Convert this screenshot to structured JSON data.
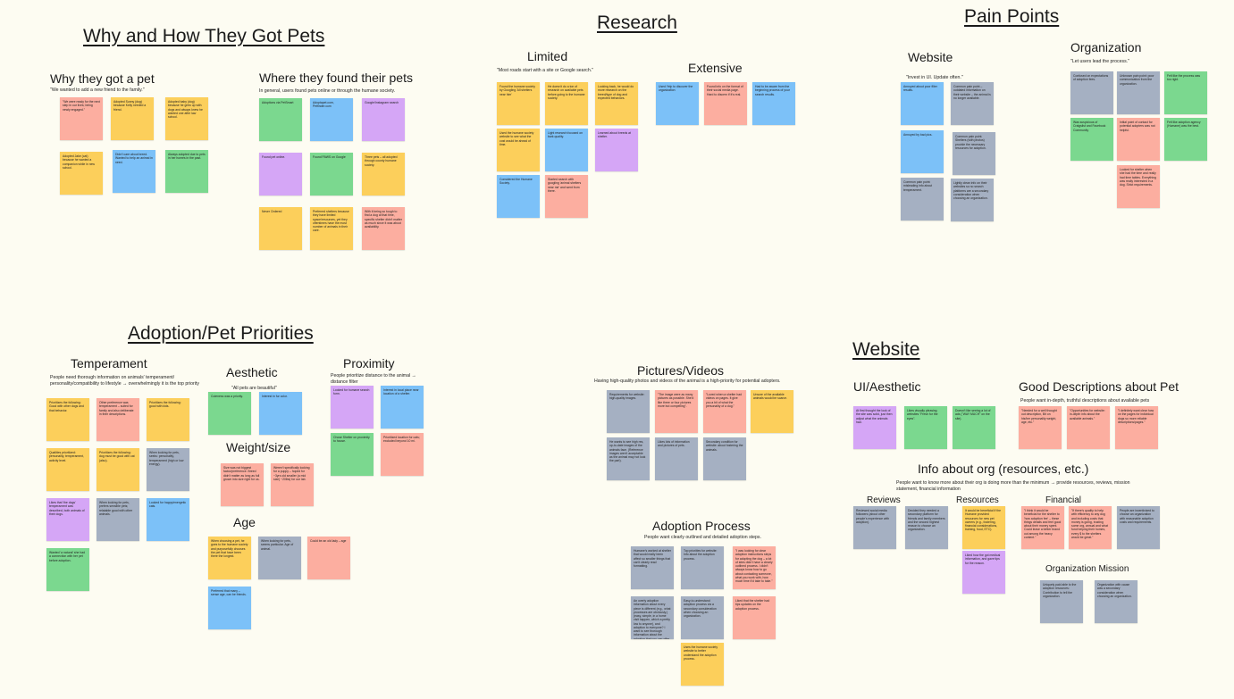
{
  "sections": {
    "why_how": "Why and How They Got Pets",
    "research": "Research",
    "pain_points": "Pain Points",
    "adoption_priorities": "Adoption/Pet Priorities",
    "website": "Website"
  },
  "subs": {
    "why_got": {
      "title": "Why they got a pet",
      "desc": "\"We wanted to add a new friend to the family.\""
    },
    "where_found": {
      "title": "Where they found their pets",
      "desc": "In general, users found pets online or through the humane society."
    },
    "limited": {
      "title": "Limited",
      "desc": "\"Most roads start with a site or Google search.\""
    },
    "extensive": {
      "title": "Extensive",
      "desc": ""
    },
    "pp_website": {
      "title": "Website",
      "desc": "\"Invest in UI. Update often.\""
    },
    "pp_org": {
      "title": "Organization",
      "desc": "\"Let users lead the process.\""
    },
    "temperament": {
      "title": "Temperament",
      "desc": "People need thorough information on animals' temperament/ personality/compatibility to lifestyle → overwhelmingly it is the top priority"
    },
    "aesthetic": {
      "title": "Aesthetic",
      "desc": "\"All pets are beautiful\""
    },
    "proximity": {
      "title": "Proximity",
      "desc": "People prioritize distance to the animal → distance filter"
    },
    "weight": {
      "title": "Weight/size",
      "desc": ""
    },
    "age": {
      "title": "Age",
      "desc": ""
    },
    "pictures": {
      "title": "Pictures/Videos",
      "desc": "Having high-quality photos and videos of the animal is a high-priority for potential adopters."
    },
    "process": {
      "title": "Adoption Process",
      "desc": "People want clearly outlined and detailed adoption steps."
    },
    "ui": {
      "title": "UI/Aesthetic",
      "desc": ""
    },
    "good_desc": {
      "title": "Good Descriptions about Pet",
      "desc": "People want in-depth, truthful descriptions about available pets"
    },
    "info_org": {
      "title": "Info about org (resources, etc.)",
      "desc": "People want to know more about their org is doing more than the minimum → provide resources, reviews, mission statement, financial information"
    },
    "reviews": {
      "title": "Reviews",
      "desc": ""
    },
    "resources": {
      "title": "Resources",
      "desc": ""
    },
    "financial": {
      "title": "Financial",
      "desc": ""
    },
    "mission": {
      "title": "Organization Mission",
      "desc": ""
    }
  },
  "notes": [
    {
      "c": "p",
      "text": "\"We were ready for the next step in our lives; being newly engaged.\""
    },
    {
      "c": "y",
      "text": "Adopted Sunny (dog) because Kelly needed a friend."
    },
    {
      "c": "y",
      "text": "Adopted baby (dog) because he grew up with dogs and always knew he wanted one after law school."
    },
    {
      "c": "y",
      "text": "Adopted Jake (cat) because he wanted a companion while in new school."
    },
    {
      "c": "b",
      "text": "Didn't care about breed. Wanted to help an animal in need."
    },
    {
      "c": "g",
      "text": "Always adopted due to pets in her homes in the past."
    },
    {
      "c": "g",
      "text": "Adoptions via PetSmart"
    },
    {
      "c": "b",
      "text": "Adoptapet.com, Petfinder.com"
    },
    {
      "c": "v",
      "text": "Google/Instagram search"
    },
    {
      "c": "v",
      "text": "Found pet online."
    },
    {
      "c": "g",
      "text": "Found PAWS on Google"
    },
    {
      "c": "y",
      "text": "Three pets – all adopted through county humane society."
    },
    {
      "c": "y",
      "text": "Never Ordered"
    },
    {
      "c": "y",
      "text": "Preferred shelters because they have limited space/resources, yet they oftentimes have the most number of animals in their care."
    },
    {
      "c": "p",
      "text": "With it being so tough to find a dog at that time, specific shelter didn't matter as much since it was about availability."
    },
    {
      "c": "y",
      "text": "Found the humane society by Googling 'All shelters near him'"
    },
    {
      "c": "y",
      "text": "He doesn't do a ton of research on available pets before going to the humane society."
    },
    {
      "c": "y",
      "text": "Looking back, he would do more research on the breed/type of dog and expected behaviors."
    },
    {
      "c": "y",
      "text": "Used the humane society website to see what the cost would be ahead of time."
    },
    {
      "c": "b",
      "text": "Light research focused on bark quality."
    },
    {
      "c": "v",
      "text": "Learned about breeds at shelter."
    },
    {
      "c": "b",
      "text": "Considered the Humane Society."
    },
    {
      "c": "p",
      "text": "Started search with googling 'animal shelters near me' and went from there."
    },
    {
      "c": "b",
      "text": "Used Yelp to discover the organization"
    },
    {
      "c": "p",
      "text": "Found info on the format of their social media page. Hard to discern if it's real."
    },
    {
      "c": "b",
      "text": "Had to be aware from the beginning process of your search results."
    },
    {
      "c": "b",
      "text": "Annoyed about poor filter results."
    },
    {
      "c": "s",
      "text": "Common pain point – outdated information on their website – the animal is no longer available."
    },
    {
      "c": "b",
      "text": "Annoyed by bad pics."
    },
    {
      "c": "s",
      "text": "Common pain point. Shelters (with photos) provide the necessary resources for adoption."
    },
    {
      "c": "s",
      "text": "Common pain point: misleading info about temperament."
    },
    {
      "c": "s",
      "text": "Lightly clean info on their websites so no search platforms are a secondary consideration when choosing an organization."
    },
    {
      "c": "s",
      "text": "Confused on expectations of adoption fees."
    },
    {
      "c": "s",
      "text": "Unknown pain point: poor communication from the organization."
    },
    {
      "c": "g",
      "text": "Felt like the process was too rigid."
    },
    {
      "c": "g",
      "text": "Was suspicious of Craigslist and Facebook Community"
    },
    {
      "c": "p",
      "text": "Initial point of contact for potential adopters was not helpful."
    },
    {
      "c": "g",
      "text": "Felt like adoption agency (Humane) was the best."
    },
    {
      "c": "p",
      "text": "Looked for shelter when she had the time and really had time tables. Everything was really interested in a dog. Strict requirements."
    },
    {
      "c": "y",
      "text": "Prioritizes the following: Good with other dogs and that behavior."
    },
    {
      "c": "p",
      "text": "Other preference was temperament – suited for family and also deliberate in their descriptions."
    },
    {
      "c": "y",
      "text": "Prioritizes the following: good with kids."
    },
    {
      "c": "y",
      "text": "Qualities prioritized: personality, temperament, activity level."
    },
    {
      "c": "y",
      "text": "Prioritizes the following: dog must be good with cat (also)."
    },
    {
      "c": "s",
      "text": "When looking for pets, seeks: personality, temperament (high or low energy)."
    },
    {
      "c": "v",
      "text": "Likes that 'the dogs' temperament was described, both animals of their dogs."
    },
    {
      "c": "s",
      "text": "When looking for pets, prefers sensible pets; relatable good with other animals."
    },
    {
      "c": "b",
      "text": "Looked for happy/energetic cats."
    },
    {
      "c": "g",
      "text": "Wanted 'a natural' she had a connection with her pet before adoption."
    },
    {
      "c": "g",
      "text": "Cuteness was a priority."
    },
    {
      "c": "b",
      "text": "Interest in fur color."
    },
    {
      "c": "v",
      "text": "Looked for humane search form."
    },
    {
      "c": "b",
      "text": "Interest in local place near location of a shelter."
    },
    {
      "c": "g",
      "text": "Chose Shelter on proximity to house."
    },
    {
      "c": "p",
      "text": "Prioritized location for cats; excluded beyond 10 mi."
    },
    {
      "c": "p",
      "text": "Size was not biggest factor/preference. Breed didn't matter as long as full grown into size right for us."
    },
    {
      "c": "p",
      "text": "Weren't specifically looking for a puppy – hoped for ~3yrs old smaller (a mid size) ~20lbs) for our lab."
    },
    {
      "c": "y",
      "text": "When choosing a pet, he goes to the humane society and purposefully chooses the pet that have been there the longest."
    },
    {
      "c": "s",
      "text": "When looking for pets, seems particular. Age of animal."
    },
    {
      "c": "p",
      "text": "Could be an old lady – age"
    },
    {
      "c": "b",
      "text": "Preferred that many – sense age, can be friends."
    },
    {
      "c": "s",
      "text": "Requirements for website: high-quality images."
    },
    {
      "c": "p",
      "text": "\"The image were as many pictures as possible. She'd like three or four pictures more but compelling\"."
    },
    {
      "c": "p",
      "text": "\"Loved when a shelter had videos on pages. It give you a bit of what the personality of a dog.\""
    },
    {
      "c": "y",
      "text": "Unsure of the available animals would be scarce."
    },
    {
      "c": "s",
      "text": "He wants to see high res, up-to-date images of the animals face. (Reference images aren't acceptable as the animal may not look the part)."
    },
    {
      "c": "s",
      "text": "Likes lots of information and pictures of pets."
    },
    {
      "c": "s",
      "text": "Secondary condition for website: about fostering the animals."
    },
    {
      "c": "s",
      "text": "Humane's worked at shelter that would really been affect so smaller things that can't clearly read formatting."
    },
    {
      "c": "s",
      "text": "Top priorities for website: Info about the adoption process."
    },
    {
      "c": "p",
      "text": "\"I was looking for clear adoption instructions steps for adopting the dog – a lot of sites didn't have a clearly outlined process. I didn't always know how to go about contacting someone, what you work with, how much time it'd take to take.\""
    },
    {
      "c": "s",
      "text": "An overly adoption information about every piece is different (e.g., what processes are obviously.) (easy, simple, in a home visit happen, which a pretty low to anyone), and adoption to everyone? I want to see thorough information about the adoption that you can offer."
    },
    {
      "c": "s",
      "text": "Easy-to-understand adoption process via a secondary consideration when choosing an organization."
    },
    {
      "c": "p",
      "text": "Liked that the shelter had tips updates on the adoption process."
    },
    {
      "c": "y",
      "text": "Uses the humane society website to better understand the adoption process."
    },
    {
      "c": "v",
      "text": "At first thought the look of the site was solid, just then adjust what the animals had."
    },
    {
      "c": "g",
      "text": "Likes visually pleasing websites \"Fresh for the eyes\"."
    },
    {
      "c": "g",
      "text": "Doesn't like seeing a lot of ads (\"WAY MUCH\" on the site)."
    },
    {
      "c": "p",
      "text": "\"Needed for a well thought out description, Bit on his/her personality weight, age, etc.\""
    },
    {
      "c": "p",
      "text": "\"Opportunities for website: in-depth info about the available animals.\""
    },
    {
      "c": "p",
      "text": "\"I definitely want clear how on the pages for individual dogs so more reliable descriptions/pages.\""
    },
    {
      "c": "s",
      "text": "Reviewed social media followers (about other people's experience with adoption)."
    },
    {
      "c": "s",
      "text": "Decided they needed a secondary platform for friends and family members and the second highest reason to choose an organization."
    },
    {
      "c": "y",
      "text": "It would be beneficial if the Humane provided resources for new pet owners (e.g., fostering, financial considerations, training, food, ETC)."
    },
    {
      "c": "v",
      "text": "Liked how the got medical information, and gave tips for the reason."
    },
    {
      "c": "p",
      "text": "\"I think it would be beneficial for the shelter to 'how adoption fee' – these things details and feel good about their money spent. Could leave a better brand out among the heavy content.\""
    },
    {
      "c": "p",
      "text": "\"If there's quality to help with efficiency to any dog and including costs that money is going, trusting some org, annual and what fund helping their homes, every $ to the shelters would be great.\""
    },
    {
      "c": "s",
      "text": "People are incentivized to choose an organization with reasonable adoption costs and requirements."
    },
    {
      "c": "s",
      "text": "Uniquely paid able to the adoption resources: Contribution to tell the organization."
    },
    {
      "c": "s",
      "text": "Organization with cause was a secondary consideration when choosing an organization."
    }
  ]
}
